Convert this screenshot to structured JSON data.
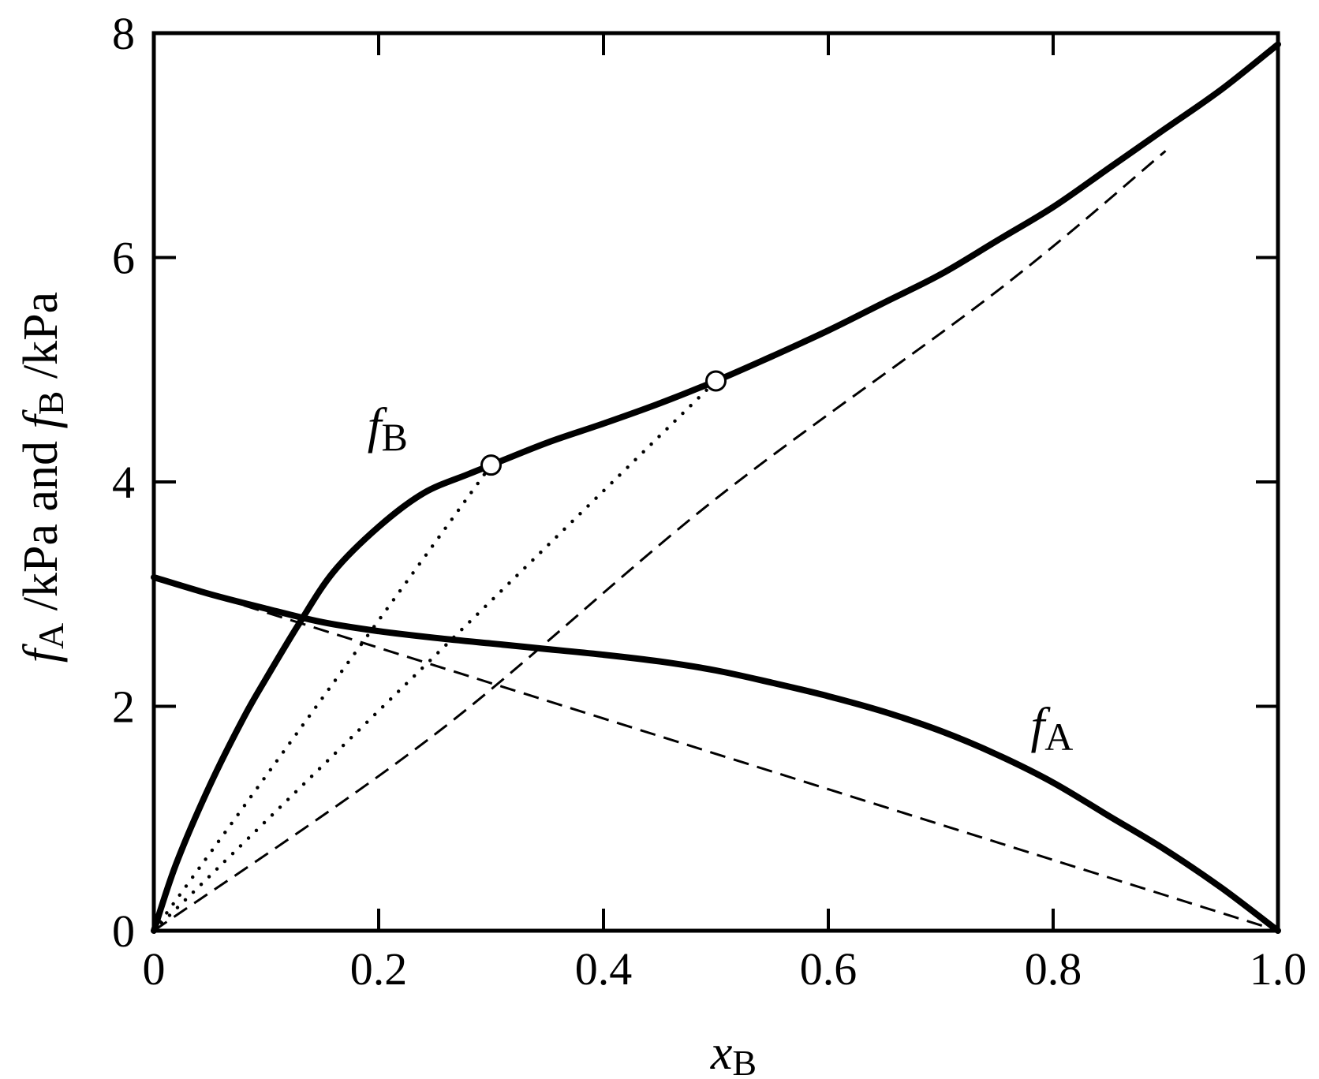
{
  "chart_data": {
    "type": "line",
    "xlim": [
      0,
      1.0
    ],
    "ylim": [
      0,
      8
    ],
    "x_ticks": [
      0,
      0.2,
      0.4,
      0.6,
      0.8,
      1.0
    ],
    "x_tick_labels": [
      "0",
      "0.2",
      "0.4",
      "0.6",
      "0.8",
      "1.0"
    ],
    "y_ticks": [
      0,
      2,
      4,
      6,
      8
    ],
    "y_tick_labels": [
      "0",
      "2",
      "4",
      "6",
      "8"
    ],
    "xlabel": {
      "main": "x",
      "sub": "B"
    },
    "ylabel": {
      "part1_main": "f",
      "part1_sub": "A",
      "part1_rest": " /kPa  and  ",
      "part2_main": "f",
      "part2_sub": "B",
      "part2_rest": " /kPa"
    },
    "grid": false,
    "series": [
      {
        "name": {
          "main": "f",
          "sub": "B"
        },
        "style": "solid",
        "x": [
          0,
          0.02,
          0.05,
          0.08,
          0.1,
          0.13,
          0.16,
          0.2,
          0.24,
          0.28,
          0.3,
          0.35,
          0.4,
          0.45,
          0.5,
          0.55,
          0.6,
          0.65,
          0.7,
          0.75,
          0.8,
          0.85,
          0.9,
          0.95,
          1.0
        ],
        "y": [
          0,
          0.6,
          1.3,
          1.9,
          2.25,
          2.75,
          3.2,
          3.6,
          3.9,
          4.07,
          4.15,
          4.35,
          4.52,
          4.7,
          4.9,
          5.12,
          5.35,
          5.6,
          5.85,
          6.15,
          6.45,
          6.8,
          7.15,
          7.5,
          7.9
        ]
      },
      {
        "name": {
          "main": "f",
          "sub": "A"
        },
        "style": "solid",
        "x": [
          0,
          0.05,
          0.1,
          0.15,
          0.2,
          0.25,
          0.3,
          0.35,
          0.4,
          0.45,
          0.5,
          0.55,
          0.6,
          0.65,
          0.7,
          0.75,
          0.8,
          0.85,
          0.9,
          0.95,
          1.0
        ],
        "y": [
          3.15,
          3.0,
          2.87,
          2.75,
          2.67,
          2.61,
          2.56,
          2.51,
          2.46,
          2.4,
          2.32,
          2.21,
          2.09,
          1.95,
          1.78,
          1.57,
          1.32,
          1.02,
          0.72,
          0.38,
          0
        ]
      }
    ],
    "dashed_lines": [
      {
        "x": [
          0,
          0.25,
          0.5,
          0.75,
          0.9
        ],
        "y": [
          0,
          1.75,
          3.85,
          5.7,
          6.95
        ]
      },
      {
        "x": [
          0.08,
          1.0
        ],
        "y": [
          2.9,
          0
        ]
      }
    ],
    "dotted_lines": [
      {
        "x": [
          0,
          0.3
        ],
        "y": [
          0,
          4.15
        ]
      },
      {
        "x": [
          0,
          0.5
        ],
        "y": [
          0,
          4.9
        ]
      }
    ],
    "markers": [
      {
        "x": 0.3,
        "y": 4.15
      },
      {
        "x": 0.5,
        "y": 4.9
      }
    ],
    "annotations": [
      {
        "main": "f",
        "sub": "B",
        "x": 0.19,
        "y": 4.35
      },
      {
        "main": "f",
        "sub": "A",
        "x": 0.78,
        "y": 1.68
      }
    ]
  }
}
